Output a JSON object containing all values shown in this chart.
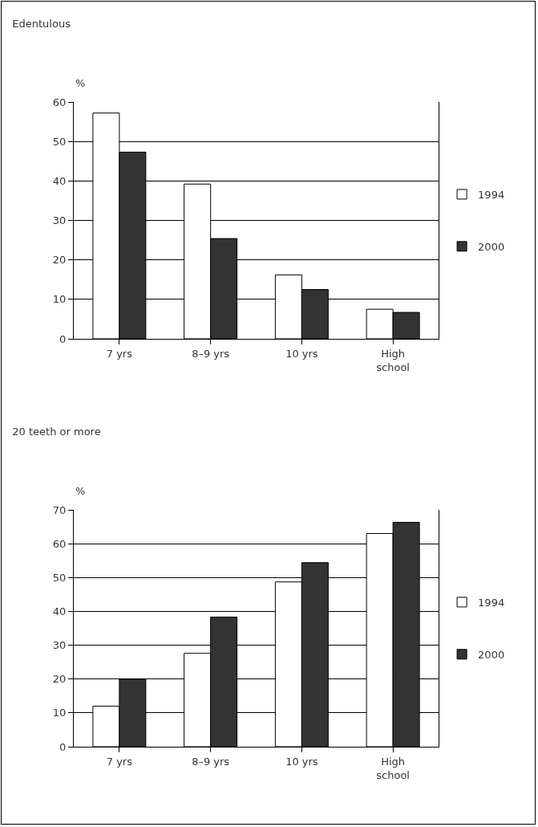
{
  "chart_data": [
    {
      "type": "bar",
      "title": "Edentulous",
      "ylabel": "%",
      "categories": [
        "7 yrs",
        "8–9 yrs",
        "10 yrs",
        "High school"
      ],
      "series": [
        {
          "name": "1994",
          "color": "#ffffff",
          "values": [
            57.2,
            39.2,
            16.2,
            7.5
          ]
        },
        {
          "name": "2000",
          "color": "#333333",
          "values": [
            47.3,
            25.4,
            12.5,
            6.7
          ]
        }
      ],
      "ylim": [
        0,
        60
      ],
      "yticks": [
        0,
        10,
        20,
        30,
        40,
        50,
        60
      ],
      "grid": "y",
      "legend": "right"
    },
    {
      "type": "bar",
      "title": "20 teeth or more",
      "ylabel": "%",
      "categories": [
        "7 yrs",
        "8–9 yrs",
        "10 yrs",
        "High school"
      ],
      "series": [
        {
          "name": "1994",
          "color": "#ffffff",
          "values": [
            12,
            27.6,
            48.7,
            63
          ]
        },
        {
          "name": "2000",
          "color": "#333333",
          "values": [
            20,
            38.3,
            54.4,
            66.3
          ]
        }
      ],
      "ylim": [
        0,
        70
      ],
      "yticks": [
        0,
        10,
        20,
        30,
        40,
        50,
        60,
        70
      ],
      "grid": "y",
      "legend": "right"
    }
  ]
}
